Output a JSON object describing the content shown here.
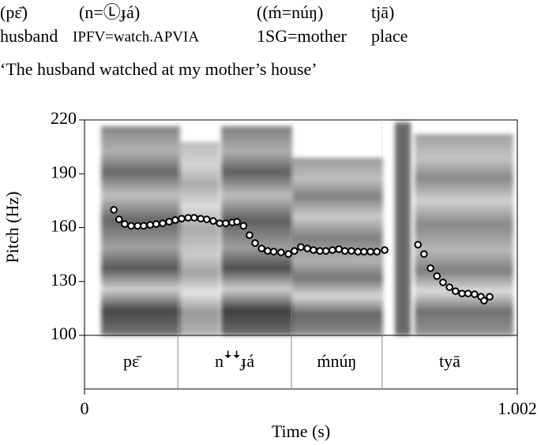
{
  "gloss": {
    "words": [
      "(pɛ̄)",
      "(n=Ⓛɟá)",
      "((ḿ=núŋ)",
      "tjā)"
    ],
    "glosses": [
      "husband",
      "IPFV=watch.APVIA",
      "1SG=mother",
      "place"
    ],
    "translation": "‘The husband watched at my mother’s house’"
  },
  "chart_data": {
    "type": "scatter",
    "ylabel": "Pitch (Hz)",
    "xlabel": "Time (s)",
    "ylim": [
      100,
      220
    ],
    "yticks": [
      100,
      130,
      160,
      190,
      220
    ],
    "xlim": [
      0,
      1.002
    ],
    "xticks": [
      0,
      1.002
    ],
    "color": "#ffffff",
    "x": [
      0.068,
      0.08,
      0.093,
      0.108,
      0.123,
      0.137,
      0.152,
      0.166,
      0.181,
      0.196,
      0.21,
      0.225,
      0.24,
      0.254,
      0.269,
      0.283,
      0.298,
      0.313,
      0.327,
      0.342,
      0.353,
      0.368,
      0.382,
      0.395,
      0.41,
      0.424,
      0.438,
      0.455,
      0.472,
      0.486,
      0.501,
      0.516,
      0.53,
      0.545,
      0.559,
      0.574,
      0.589,
      0.603,
      0.618,
      0.633,
      0.647,
      0.662,
      0.677,
      0.695,
      0.772,
      0.786,
      0.801,
      0.816,
      0.83,
      0.845,
      0.859,
      0.874,
      0.888,
      0.903,
      0.918,
      0.925,
      0.938
    ],
    "values": [
      169.9,
      164.6,
      162,
      161,
      161,
      161,
      161.5,
      162,
      162.4,
      163.3,
      164.2,
      165,
      165.5,
      165.5,
      165,
      164.6,
      163.7,
      162.4,
      162.4,
      162.9,
      163.3,
      161,
      155.8,
      151.4,
      148.4,
      147,
      146.6,
      146.2,
      145.3,
      147,
      149.2,
      148.4,
      147.5,
      147,
      147,
      147.5,
      148,
      147,
      147,
      146.6,
      146.6,
      146.6,
      146.6,
      147.5,
      150.5,
      145.3,
      137.4,
      133,
      129.5,
      126.8,
      124.6,
      123.3,
      123.3,
      122.9,
      121.5,
      119.3,
      121.5
    ],
    "tier": {
      "labels": [
        "pɛ̄",
        "nꜜꜜɟá",
        "ḿnúŋ",
        "tyā"
      ],
      "boundaries": [
        0.216,
        0.479,
        0.689
      ]
    }
  }
}
